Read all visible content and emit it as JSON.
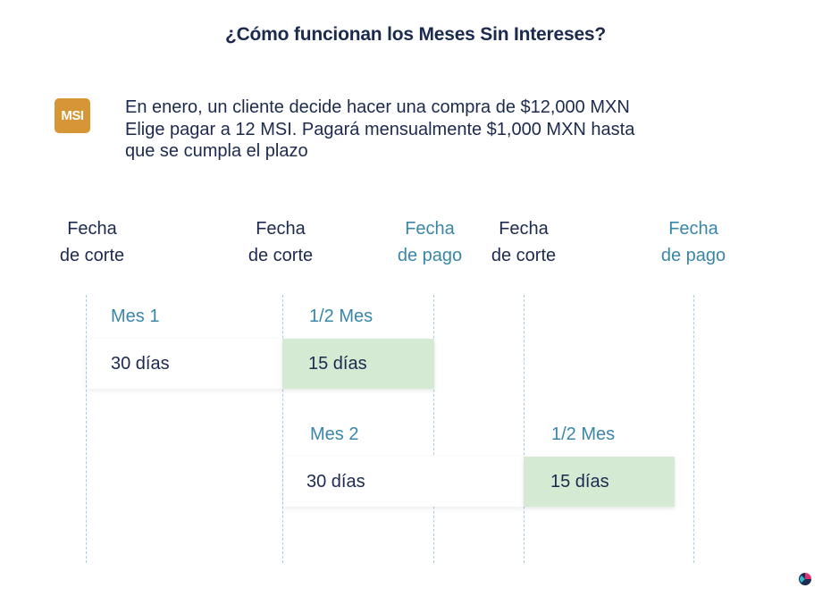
{
  "title": "¿Cómo funcionan los Meses Sin Intereses?",
  "badge": "MSI",
  "intro": [
    "En enero, un cliente decide hacer una compra de $12,000 MXN",
    "Elige pagar a 12 MSI. Pagará mensualmente $1,000 MXN hasta",
    "que se cumpla el plazo"
  ],
  "headers": [
    {
      "line1": "Fecha",
      "line2": "de corte",
      "kind": "corte"
    },
    {
      "line1": "Fecha",
      "line2": "de corte",
      "kind": "corte"
    },
    {
      "line1": "Fecha",
      "line2": "de pago",
      "kind": "pago"
    },
    {
      "line1": "Fecha",
      "line2": "de corte",
      "kind": "corte"
    },
    {
      "line1": "Fecha",
      "line2": "de pago",
      "kind": "pago"
    }
  ],
  "periods": {
    "row1": {
      "label_a": "Mes 1",
      "box_a": "30 días",
      "label_b": "1/2 Mes",
      "box_b": "15 días"
    },
    "row2": {
      "label_a": "Mes 2",
      "box_a": "30 días",
      "label_b": "1/2 Mes",
      "box_b": "15 días"
    }
  },
  "colors": {
    "navy": "#1b2a4e",
    "teal": "#3a86a8",
    "badge": "#d69635",
    "green": "#d5ead3",
    "dashed": "#a9cbe6"
  },
  "logo_icon": "brand-logo-icon"
}
